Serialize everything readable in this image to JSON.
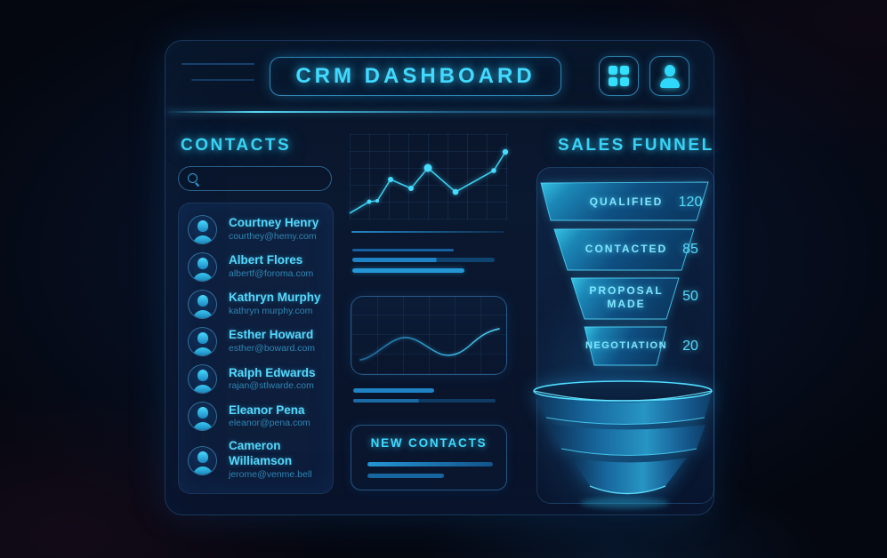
{
  "header": {
    "title": "CRM DASHBOARD",
    "icons": [
      "grid-icon",
      "user-icon"
    ]
  },
  "contacts": {
    "heading": "CONTACTS",
    "search": {
      "placeholder": "",
      "value": "",
      "icon": "search-icon"
    },
    "items": [
      {
        "name": "Courtney Henry",
        "email": "courthey@hemy.com"
      },
      {
        "name": "Albert Flores",
        "email": "albertf@foroma.com"
      },
      {
        "name": "Kathryn Murphy",
        "email": "kathryn murphy.com"
      },
      {
        "name": "Esther Howard",
        "email": "esther@boward.com"
      },
      {
        "name": "Ralph Edwards",
        "email": "rajan@stlwarde.com"
      },
      {
        "name": "Eleanor Pena",
        "email": "eleanor@pena.com"
      },
      {
        "name": "Cameron Williamson",
        "email": "jerome@venme.bell"
      }
    ],
    "avatar_icon": "person-silhouette-icon"
  },
  "new_contacts": {
    "title": "NEW CONTACTS"
  },
  "sales_funnel": {
    "heading": "SALES FUNNEL"
  },
  "chart_data": [
    {
      "type": "line",
      "title": "",
      "xlabel": "",
      "ylabel": "",
      "grid": true,
      "points": [
        [
          0,
          90
        ],
        [
          22,
          77
        ],
        [
          31,
          76
        ],
        [
          46,
          52
        ],
        [
          69,
          62
        ],
        [
          88,
          39
        ],
        [
          119,
          66
        ],
        [
          162,
          42
        ],
        [
          175,
          21
        ]
      ],
      "dots": [
        [
          22,
          77,
          2.5
        ],
        [
          31,
          76,
          2
        ],
        [
          46,
          52,
          3
        ],
        [
          69,
          62,
          3
        ],
        [
          88,
          39,
          4.5
        ],
        [
          119,
          66,
          3.3
        ],
        [
          162,
          42,
          2.8
        ],
        [
          175,
          21,
          3.2
        ]
      ]
    },
    {
      "type": "funnel",
      "title": "SALES FUNNEL",
      "stages": [
        {
          "label": "QUALIFIED",
          "value": 120
        },
        {
          "label": "CONTACTED",
          "value": 85
        },
        {
          "label": "PROPOSAL MADE",
          "value": 50
        },
        {
          "label": "NEGOTIATION",
          "value": 20
        }
      ]
    }
  ],
  "colors": {
    "accent": "#3fd9ff",
    "heading": "#38d3f4",
    "panel_border": "#2f6ea6",
    "funnel_fill_light": "#36c3e4",
    "funnel_fill_dark": "#0b3a64",
    "skeleton_bright": "#2196d8",
    "skeleton_dim": "#0f4470"
  }
}
